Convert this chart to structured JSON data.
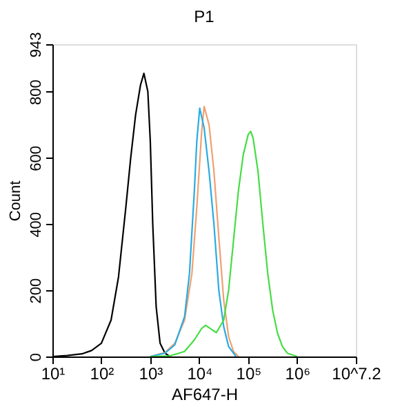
{
  "chart_data": {
    "type": "line",
    "title": "P1",
    "xlabel": "AF647-H",
    "ylabel": "Count",
    "log": "x",
    "xlim": [
      10,
      15848931.92
    ],
    "xticks": [
      {
        "value": 10,
        "label": "10¹"
      },
      {
        "value": 100,
        "label": "10²"
      },
      {
        "value": 1000,
        "label": "10³"
      },
      {
        "value": 10000,
        "label": "10⁴"
      },
      {
        "value": 100000,
        "label": "10⁵"
      },
      {
        "value": 1000000,
        "label": "10⁶"
      },
      {
        "value": 15848931.92,
        "label": "10^7.2"
      }
    ],
    "ylim": [
      0,
      943
    ],
    "yticks": [
      0,
      200,
      400,
      600,
      800,
      943
    ],
    "grid": false,
    "legend": false,
    "marker": "none",
    "line_style": "solid",
    "series": [
      {
        "color": "#000000",
        "x": [
          10,
          20,
          40,
          63,
          100,
          158,
          224,
          316,
          398,
          501,
          631,
          741,
          891,
          1000,
          1122,
          1318,
          1585,
          1995,
          2512
        ],
        "values": [
          0,
          3,
          8,
          18,
          40,
          110,
          240,
          450,
          600,
          730,
          820,
          855,
          800,
          650,
          400,
          150,
          40,
          10,
          0
        ]
      },
      {
        "color": "#f0a070",
        "x": [
          1000,
          1995,
          3162,
          5012,
          7079,
          8913,
          11220,
          12590,
          15850,
          19950,
          25120,
          31620,
          39810,
          50120,
          63100
        ],
        "values": [
          0,
          12,
          40,
          110,
          250,
          450,
          680,
          755,
          700,
          560,
          360,
          170,
          60,
          15,
          0
        ]
      },
      {
        "color": "#29abe2",
        "x": [
          1000,
          1995,
          3162,
          5012,
          6310,
          7943,
          8913,
          10230,
          12590,
          15850,
          19950,
          25120,
          31620,
          39810,
          56230
        ],
        "values": [
          0,
          10,
          35,
          120,
          250,
          500,
          650,
          750,
          690,
          560,
          400,
          200,
          90,
          30,
          0
        ]
      },
      {
        "color": "#44dd44",
        "x": [
          1000,
          2512,
          5012,
          7943,
          11220,
          13490,
          17780,
          22390,
          31620,
          39810,
          50120,
          63100,
          79430,
          100000,
          112200,
          125900,
          158500,
          199500,
          251200,
          316200,
          398100,
          501200,
          631000,
          1000000
        ],
        "values": [
          0,
          2,
          15,
          50,
          85,
          94,
          82,
          72,
          110,
          200,
          350,
          500,
          610,
          670,
          680,
          660,
          560,
          400,
          250,
          140,
          70,
          30,
          10,
          0
        ]
      }
    ]
  }
}
